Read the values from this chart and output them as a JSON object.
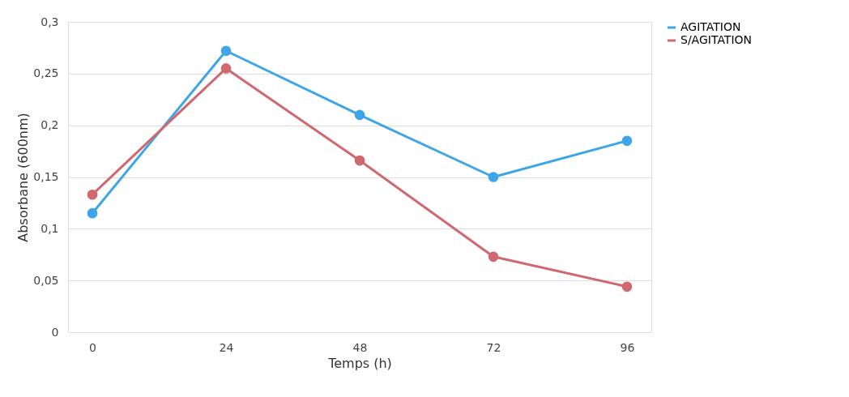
{
  "chart_data": {
    "type": "line",
    "xlabel": "Temps (h)",
    "ylabel": "Absorbane (600nm)",
    "categories": [
      "0",
      "24",
      "48",
      "72",
      "96"
    ],
    "series": [
      {
        "name": "AGITATION",
        "color": "#3ea6e8",
        "values": [
          0.115,
          0.272,
          0.21,
          0.15,
          0.185
        ]
      },
      {
        "name": "S/AGITATION",
        "color": "#d06870",
        "values": [
          0.133,
          0.255,
          0.166,
          0.073,
          0.044
        ]
      }
    ],
    "ylim": [
      0,
      0.3
    ],
    "yticks": [
      0,
      {
        "value": 0.05,
        "label": "0,05"
      },
      {
        "value": 0.1,
        "label": "0,1"
      },
      {
        "value": 0.15,
        "label": "0,15"
      },
      {
        "value": 0.2,
        "label": "0,2"
      },
      {
        "value": 0.25,
        "label": "0,25"
      },
      {
        "value": 0.3,
        "label": "0,3"
      }
    ],
    "grid": "y",
    "legend": "right",
    "marker": "circle",
    "line_style": "solid"
  }
}
